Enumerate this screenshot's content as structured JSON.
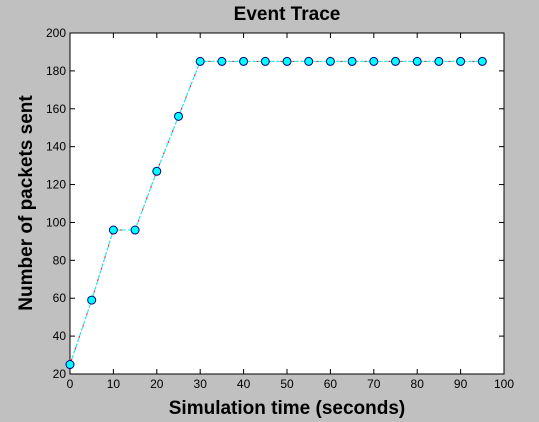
{
  "chart_data": {
    "type": "line",
    "title": "Event Trace",
    "xlabel": "Simulation time (seconds)",
    "ylabel": "Number of packets sent",
    "xlim": [
      0,
      100
    ],
    "ylim": [
      20,
      200
    ],
    "xticks": [
      0,
      10,
      20,
      30,
      40,
      50,
      60,
      70,
      80,
      90,
      100
    ],
    "yticks": [
      20,
      40,
      60,
      80,
      100,
      120,
      140,
      160,
      180,
      200
    ],
    "grid": false,
    "series": [
      {
        "x": [
          0,
          5,
          10,
          15,
          20,
          25,
          30,
          35,
          40,
          45,
          50,
          55,
          60,
          65,
          70,
          75,
          80,
          85,
          90,
          95
        ],
        "y": [
          25,
          59,
          96,
          96,
          127,
          156,
          185,
          185,
          185,
          185,
          185,
          185,
          185,
          185,
          185,
          185,
          185,
          185,
          185,
          185
        ],
        "line_color": "#00ffff",
        "under_line_color": "#ff0000",
        "marker": "circle",
        "marker_fill": "#00ffff",
        "marker_edge": "#000080"
      }
    ]
  },
  "colors": {
    "figure_background": "#c0c0c0",
    "plot_background": "#ffffff",
    "axis": "#000000"
  }
}
